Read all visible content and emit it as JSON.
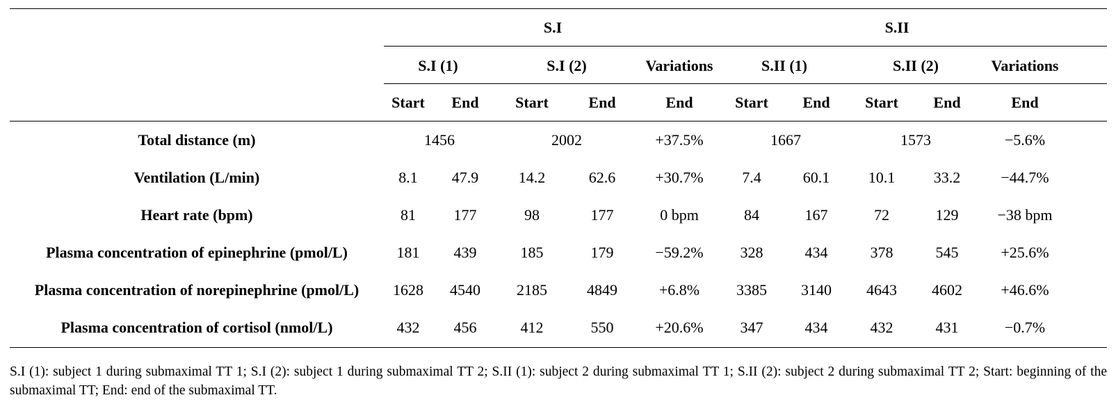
{
  "table": {
    "groups": [
      "S.I",
      "S.II"
    ],
    "subgroups": [
      "S.I (1)",
      "S.I (2)",
      "Variations",
      "S.II (1)",
      "S.II (2)",
      "Variations"
    ],
    "columns": [
      "Start",
      "End",
      "Start",
      "End",
      "End",
      "Start",
      "End",
      "Start",
      "End",
      "End"
    ],
    "rows": [
      {
        "label": "Total distance (m)",
        "cells": [
          "1456",
          "2002",
          "+37.5%",
          "1667",
          "1573",
          "−5.6%"
        ]
      },
      {
        "label": "Ventilation (L/min)",
        "cells": [
          "8.1",
          "47.9",
          "14.2",
          "62.6",
          "+30.7%",
          "7.4",
          "60.1",
          "10.1",
          "33.2",
          "−44.7%"
        ]
      },
      {
        "label": "Heart rate (bpm)",
        "cells": [
          "81",
          "177",
          "98",
          "177",
          "0 bpm",
          "84",
          "167",
          "72",
          "129",
          "−38 bpm"
        ]
      },
      {
        "label": "Plasma concentration of epinephrine (pmol/L)",
        "cells": [
          "181",
          "439",
          "185",
          "179",
          "−59.2%",
          "328",
          "434",
          "378",
          "545",
          "+25.6%"
        ]
      },
      {
        "label": "Plasma concentration of norepinephrine (pmol/L)",
        "cells": [
          "1628",
          "4540",
          "2185",
          "4849",
          "+6.8%",
          "3385",
          "3140",
          "4643",
          "4602",
          "+46.6%"
        ]
      },
      {
        "label": "Plasma concentration of cortisol (nmol/L)",
        "cells": [
          "432",
          "456",
          "412",
          "550",
          "+20.6%",
          "347",
          "434",
          "432",
          "431",
          "−0.7%"
        ]
      }
    ]
  },
  "footnote": "S.I (1): subject 1 during submaximal TT 1; S.I (2): subject 1 during submaximal TT 2; S.II (1): subject 2 during submaximal TT 1; S.II (2): subject 2 during submaximal TT 2; Start: beginning of the submaximal TT; End: end of the submaximal TT."
}
